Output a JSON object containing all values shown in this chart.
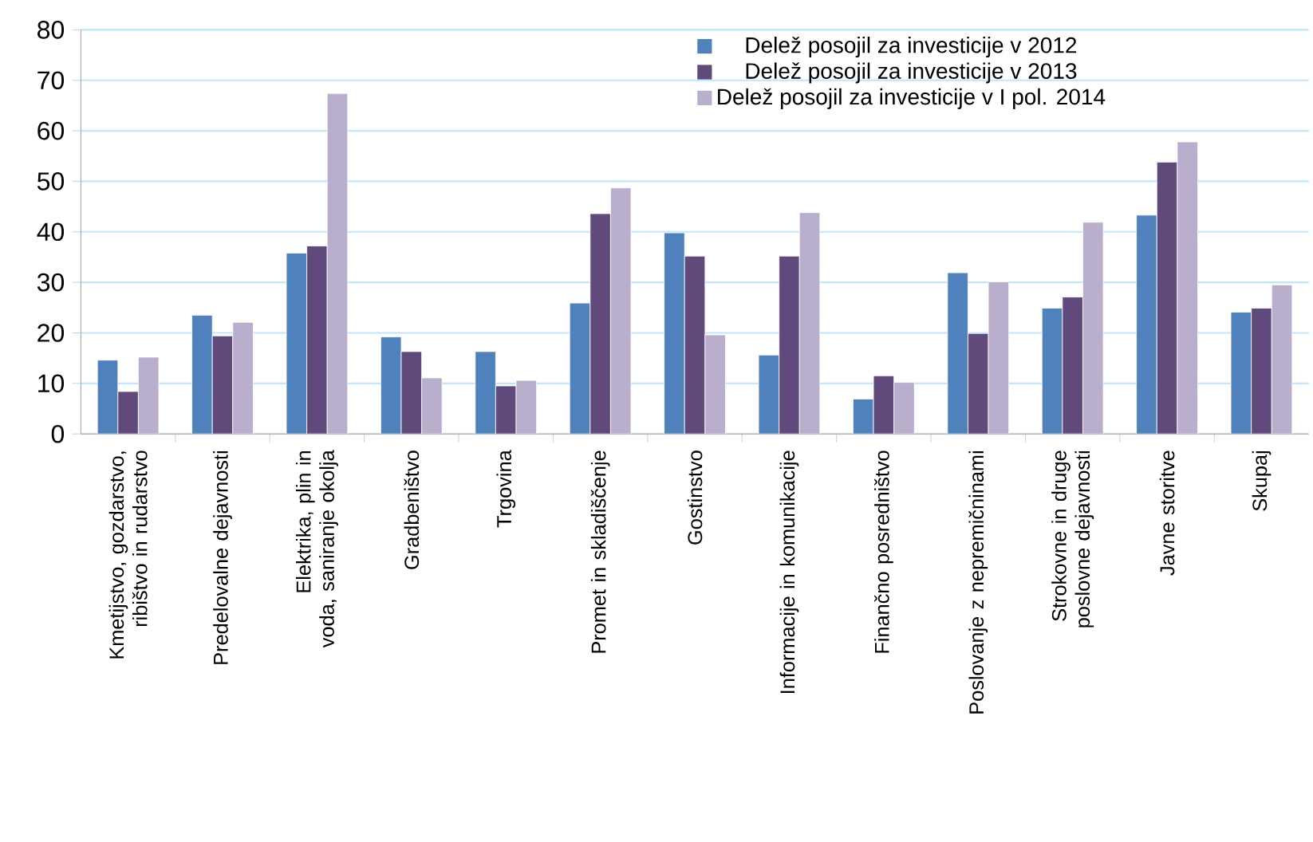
{
  "chart_data": {
    "type": "bar",
    "categories": [
      "Kmetijstvo, gozdarstvo, ribištvo in rudarstvo",
      "Predelovalne dejavnosti",
      "Elektrika, plin in voda, saniranje okolja",
      "Gradbeništvo",
      "Trgovina",
      "Promet in skladiščenje",
      "Gostinstvo",
      "Informacije in komunikacije",
      "Finančno posredništvo",
      "Poslovanje z nepremičninami",
      "Strokovne in druge poslovne dejavnosti",
      "Javne storitve",
      "Skupaj"
    ],
    "series": [
      {
        "name": "Delež posojil za investicije v 2012",
        "color": "#4f81bd",
        "values": [
          14.6,
          23.5,
          35.8,
          19.2,
          16.3,
          25.9,
          39.8,
          15.6,
          6.9,
          31.9,
          24.9,
          43.3,
          24.1
        ]
      },
      {
        "name": "Delež posojil za investicije v 2013",
        "color": "#604a7b",
        "values": [
          8.4,
          19.4,
          37.2,
          16.3,
          9.5,
          43.6,
          35.2,
          35.2,
          11.5,
          19.9,
          27.1,
          53.8,
          24.9
        ]
      },
      {
        "name": "Delež posojil za investicije v I pol. 2014",
        "color": "#b9afcc",
        "values": [
          15.2,
          22.1,
          67.4,
          11.1,
          10.6,
          48.7,
          19.6,
          43.8,
          10.2,
          30.1,
          41.9,
          57.8,
          29.5
        ]
      }
    ],
    "ylim": [
      0,
      80
    ],
    "yticks": [
      0,
      10,
      20,
      30,
      40,
      50,
      60,
      70,
      80
    ],
    "grid": "y",
    "legend": "top right"
  }
}
